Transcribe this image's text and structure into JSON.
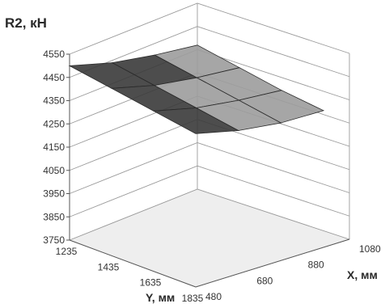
{
  "chart_data": {
    "type": "surface",
    "title": "R2, кН",
    "xlabel": "X, мм",
    "ylabel": "Y, мм",
    "zlim": [
      3750,
      4550
    ],
    "z_ticks": [
      "4550",
      "4450",
      "4350",
      "4250",
      "4150",
      "4050",
      "3950",
      "3850",
      "3750"
    ],
    "x_ticks": [
      "480",
      "680",
      "880",
      "1080"
    ],
    "y_ticks": [
      "1235",
      "1435",
      "1635",
      "1835"
    ],
    "x": [
      480,
      680,
      880,
      1080
    ],
    "y": [
      1235,
      1435,
      1635,
      1835
    ],
    "z_grid": [
      [
        4500,
        4440,
        4400,
        4370
      ],
      [
        4470,
        4410,
        4370,
        4340
      ],
      [
        4440,
        4380,
        4340,
        4310
      ],
      [
        4410,
        4350,
        4310,
        4290
      ]
    ],
    "grid": true,
    "colors": {
      "surface_light": "#9c9c9c",
      "surface_dark": "#3a3a3a",
      "floor": "#eeeeee",
      "walls": "#ffffff"
    }
  }
}
